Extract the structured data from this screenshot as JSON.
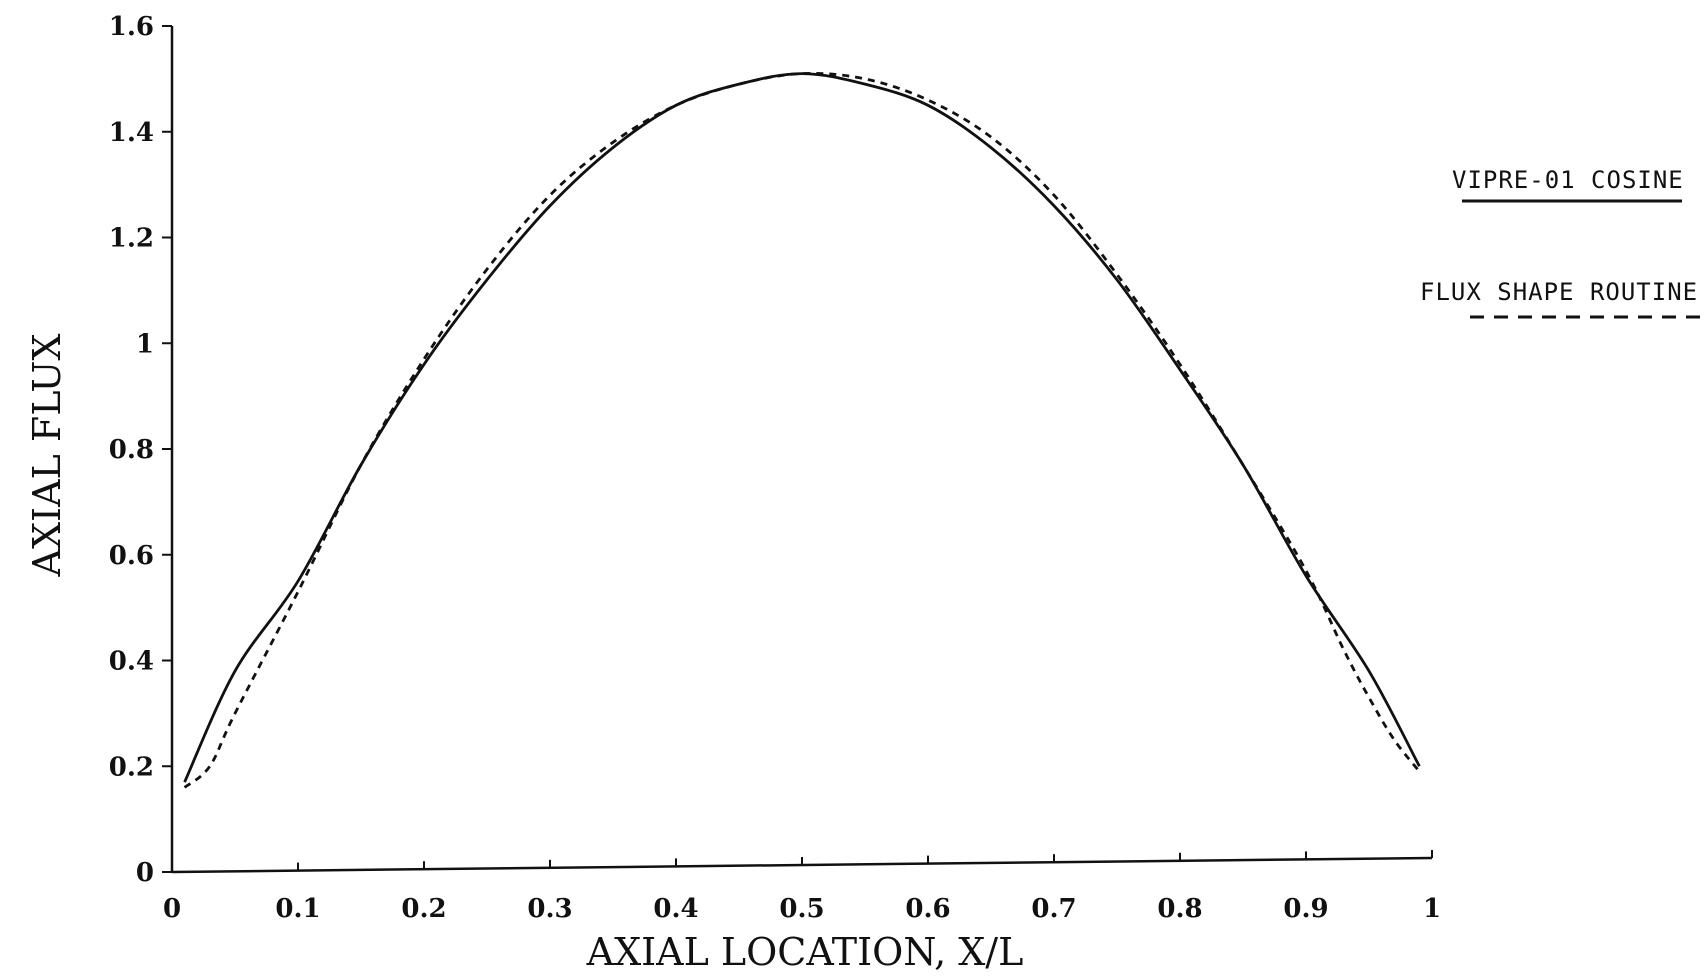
{
  "chart_data": {
    "type": "line",
    "title": "",
    "xlabel": "AXIAL LOCATION, X/L",
    "ylabel": "AXIAL FLUX",
    "xlim": [
      0,
      1
    ],
    "ylim": [
      0,
      1.6
    ],
    "x_ticks": [
      0,
      0.1,
      0.2,
      0.3,
      0.4,
      0.5,
      0.6,
      0.7,
      0.8,
      0.9,
      1
    ],
    "x_tick_labels": [
      "0",
      "0.1",
      "0.2",
      "0.3",
      "0.4",
      "0.5",
      "0.6",
      "0.7",
      "0.8",
      "0.9",
      "1"
    ],
    "y_ticks": [
      0,
      0.2,
      0.4,
      0.6,
      0.8,
      1,
      1.2,
      1.4,
      1.6
    ],
    "y_tick_labels": [
      "0",
      "0.2",
      "0.4",
      "0.6",
      "0.8",
      "1",
      "1.2",
      "1.4",
      "1.6"
    ],
    "grid": false,
    "legend_position": "right",
    "series": [
      {
        "name": "VIPRE-01 COSINE",
        "style": "solid",
        "color": "#111111",
        "x": [
          0.01,
          0.05,
          0.1,
          0.15,
          0.2,
          0.25,
          0.3,
          0.35,
          0.4,
          0.45,
          0.5,
          0.55,
          0.6,
          0.65,
          0.7,
          0.75,
          0.8,
          0.85,
          0.9,
          0.95,
          0.99
        ],
        "y": [
          0.17,
          0.38,
          0.55,
          0.77,
          0.96,
          1.12,
          1.26,
          1.37,
          1.45,
          1.49,
          1.51,
          1.49,
          1.45,
          1.37,
          1.26,
          1.12,
          0.95,
          0.77,
          0.56,
          0.38,
          0.2
        ]
      },
      {
        "name": "FLUX SHAPE ROUTINE",
        "style": "dashed",
        "color": "#111111",
        "x": [
          0.01,
          0.03,
          0.05,
          0.1,
          0.15,
          0.2,
          0.25,
          0.3,
          0.35,
          0.4,
          0.45,
          0.5,
          0.55,
          0.6,
          0.65,
          0.7,
          0.75,
          0.8,
          0.85,
          0.9,
          0.93,
          0.95,
          0.97,
          0.99
        ],
        "y": [
          0.16,
          0.2,
          0.3,
          0.53,
          0.77,
          0.97,
          1.14,
          1.28,
          1.38,
          1.45,
          1.49,
          1.51,
          1.5,
          1.46,
          1.39,
          1.28,
          1.13,
          0.96,
          0.77,
          0.57,
          0.42,
          0.33,
          0.25,
          0.19
        ]
      }
    ]
  }
}
